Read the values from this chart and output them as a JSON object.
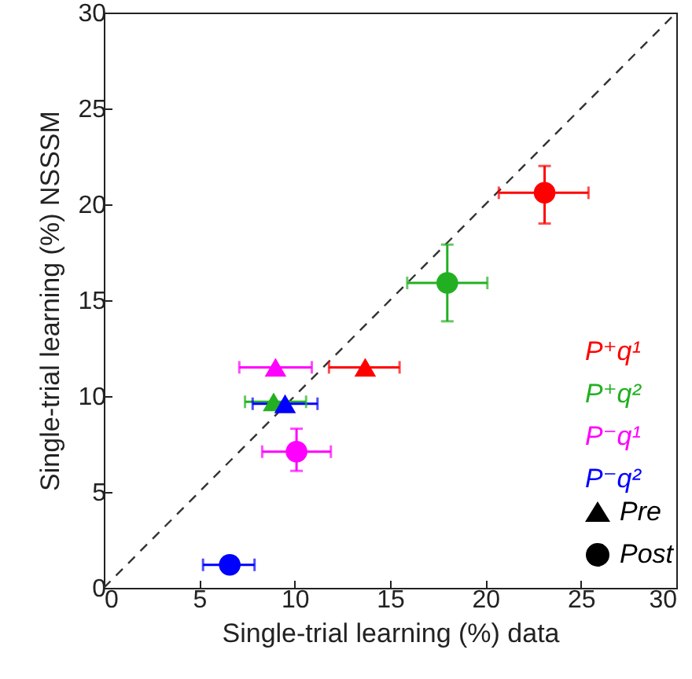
{
  "chart_data": {
    "type": "scatter",
    "xlabel": "Single-trial learning (%) data",
    "ylabel": "Single-trial learning (%) NSSSM",
    "xlim": [
      0,
      30
    ],
    "ylim": [
      0,
      30
    ],
    "xticks": [
      0,
      5,
      10,
      15,
      20,
      25,
      30
    ],
    "yticks": [
      0,
      5,
      10,
      15,
      20,
      25,
      30
    ],
    "series": [
      {
        "name": "P⁺q¹",
        "color": "#ff0000",
        "marker": [
          "triangle",
          "circle"
        ],
        "x": [
          13.7,
          23.1
        ],
        "values": [
          11.5,
          20.6
        ],
        "xerrors": [
          [
            11.8,
            15.5
          ],
          [
            20.7,
            25.4
          ]
        ],
        "errors": [
          null,
          [
            19.0,
            22.0
          ]
        ]
      },
      {
        "name": "P⁺q²",
        "color": "#22b022",
        "marker": [
          "triangle",
          "circle"
        ],
        "x": [
          8.9,
          18.0
        ],
        "values": [
          9.7,
          15.9
        ],
        "xerrors": [
          [
            7.4,
            10.6
          ],
          [
            15.9,
            20.1
          ]
        ],
        "errors": [
          null,
          [
            13.9,
            17.9
          ]
        ]
      },
      {
        "name": "P⁻q¹",
        "color": "#ff00ff",
        "marker": [
          "triangle",
          "circle"
        ],
        "x": [
          9.0,
          10.1
        ],
        "values": [
          11.5,
          7.1
        ],
        "xerrors": [
          [
            7.1,
            10.9
          ],
          [
            8.3,
            11.9
          ]
        ],
        "errors": [
          null,
          [
            6.1,
            8.3
          ]
        ]
      },
      {
        "name": "P⁻q²",
        "color": "#0000ff",
        "marker": [
          "triangle",
          "circle"
        ],
        "x": [
          9.5,
          6.6
        ],
        "values": [
          9.6,
          1.2
        ],
        "xerrors": [
          [
            7.8,
            11.2
          ],
          [
            5.2,
            7.9
          ]
        ],
        "errors": [
          null,
          null
        ]
      },
      {
        "type": "line",
        "color": "#333333",
        "line_style": "dashed",
        "x": [
          0,
          30
        ],
        "values": [
          0,
          30
        ]
      }
    ],
    "annotations": [
      "Pre",
      "Post"
    ]
  }
}
